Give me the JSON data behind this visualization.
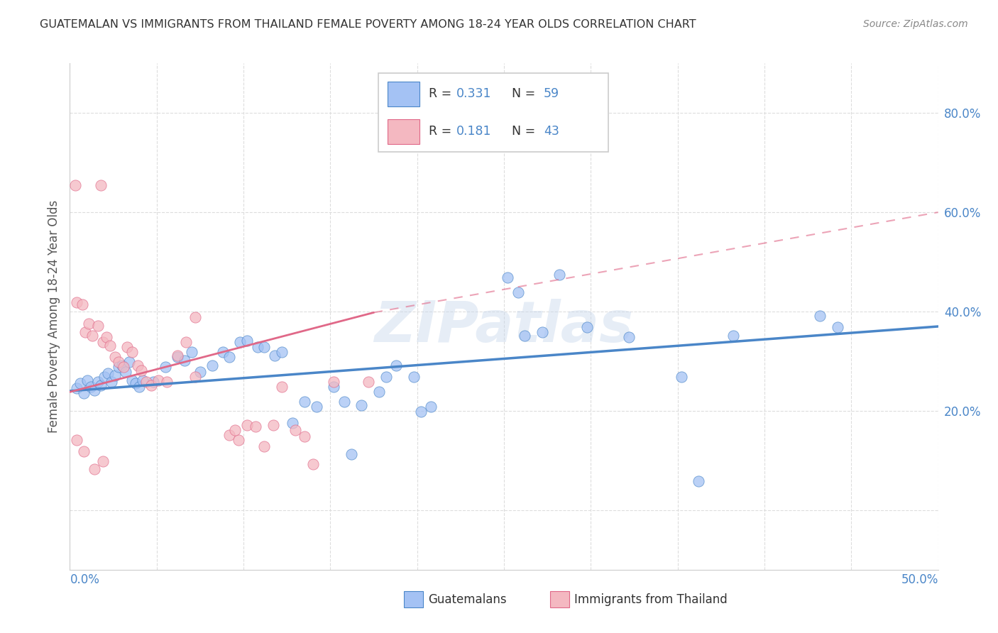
{
  "title": "GUATEMALAN VS IMMIGRANTS FROM THAILAND FEMALE POVERTY AMONG 18-24 YEAR OLDS CORRELATION CHART",
  "source": "Source: ZipAtlas.com",
  "ylabel": "Female Poverty Among 18-24 Year Olds",
  "x_range": [
    0.0,
    0.5
  ],
  "y_range": [
    -0.12,
    0.9
  ],
  "y_ticks": [
    0.0,
    0.2,
    0.4,
    0.6,
    0.8
  ],
  "y_tick_labels": [
    "",
    "20.0%",
    "40.0%",
    "60.0%",
    "80.0%"
  ],
  "color_blue": "#a4c2f4",
  "color_pink": "#f4b8c1",
  "color_blue_dark": "#4a86c8",
  "color_pink_dark": "#e06888",
  "color_blue_text": "#4a86c8",
  "watermark": "ZIPatlas",
  "blue_points": [
    [
      0.004,
      0.245
    ],
    [
      0.006,
      0.255
    ],
    [
      0.008,
      0.235
    ],
    [
      0.01,
      0.262
    ],
    [
      0.012,
      0.248
    ],
    [
      0.014,
      0.242
    ],
    [
      0.016,
      0.258
    ],
    [
      0.018,
      0.252
    ],
    [
      0.02,
      0.268
    ],
    [
      0.022,
      0.275
    ],
    [
      0.024,
      0.258
    ],
    [
      0.026,
      0.272
    ],
    [
      0.028,
      0.288
    ],
    [
      0.03,
      0.292
    ],
    [
      0.032,
      0.278
    ],
    [
      0.034,
      0.298
    ],
    [
      0.036,
      0.262
    ],
    [
      0.038,
      0.255
    ],
    [
      0.04,
      0.248
    ],
    [
      0.042,
      0.262
    ],
    [
      0.048,
      0.258
    ],
    [
      0.055,
      0.288
    ],
    [
      0.062,
      0.308
    ],
    [
      0.066,
      0.302
    ],
    [
      0.07,
      0.318
    ],
    [
      0.075,
      0.278
    ],
    [
      0.082,
      0.292
    ],
    [
      0.088,
      0.318
    ],
    [
      0.092,
      0.308
    ],
    [
      0.098,
      0.338
    ],
    [
      0.102,
      0.342
    ],
    [
      0.108,
      0.328
    ],
    [
      0.112,
      0.328
    ],
    [
      0.118,
      0.312
    ],
    [
      0.122,
      0.318
    ],
    [
      0.128,
      0.175
    ],
    [
      0.135,
      0.218
    ],
    [
      0.142,
      0.208
    ],
    [
      0.152,
      0.248
    ],
    [
      0.158,
      0.218
    ],
    [
      0.162,
      0.112
    ],
    [
      0.168,
      0.212
    ],
    [
      0.178,
      0.238
    ],
    [
      0.182,
      0.268
    ],
    [
      0.188,
      0.292
    ],
    [
      0.198,
      0.268
    ],
    [
      0.202,
      0.198
    ],
    [
      0.208,
      0.208
    ],
    [
      0.252,
      0.468
    ],
    [
      0.258,
      0.438
    ],
    [
      0.262,
      0.352
    ],
    [
      0.272,
      0.358
    ],
    [
      0.282,
      0.475
    ],
    [
      0.298,
      0.368
    ],
    [
      0.322,
      0.348
    ],
    [
      0.352,
      0.268
    ],
    [
      0.362,
      0.058
    ],
    [
      0.382,
      0.352
    ],
    [
      0.432,
      0.392
    ],
    [
      0.442,
      0.368
    ]
  ],
  "pink_points": [
    [
      0.003,
      0.655
    ],
    [
      0.018,
      0.655
    ],
    [
      0.004,
      0.418
    ],
    [
      0.007,
      0.415
    ],
    [
      0.009,
      0.358
    ],
    [
      0.011,
      0.375
    ],
    [
      0.013,
      0.352
    ],
    [
      0.016,
      0.372
    ],
    [
      0.019,
      0.338
    ],
    [
      0.021,
      0.348
    ],
    [
      0.023,
      0.332
    ],
    [
      0.026,
      0.308
    ],
    [
      0.028,
      0.298
    ],
    [
      0.031,
      0.288
    ],
    [
      0.033,
      0.328
    ],
    [
      0.036,
      0.318
    ],
    [
      0.039,
      0.292
    ],
    [
      0.041,
      0.282
    ],
    [
      0.044,
      0.258
    ],
    [
      0.047,
      0.252
    ],
    [
      0.051,
      0.262
    ],
    [
      0.056,
      0.258
    ],
    [
      0.062,
      0.312
    ],
    [
      0.067,
      0.338
    ],
    [
      0.072,
      0.268
    ],
    [
      0.004,
      0.142
    ],
    [
      0.008,
      0.118
    ],
    [
      0.014,
      0.082
    ],
    [
      0.019,
      0.098
    ],
    [
      0.092,
      0.152
    ],
    [
      0.097,
      0.142
    ],
    [
      0.102,
      0.172
    ],
    [
      0.107,
      0.168
    ],
    [
      0.112,
      0.128
    ],
    [
      0.117,
      0.172
    ],
    [
      0.072,
      0.388
    ],
    [
      0.122,
      0.248
    ],
    [
      0.152,
      0.258
    ],
    [
      0.172,
      0.258
    ],
    [
      0.095,
      0.162
    ],
    [
      0.13,
      0.162
    ],
    [
      0.135,
      0.148
    ],
    [
      0.14,
      0.092
    ]
  ],
  "blue_trend_x": [
    0.0,
    0.5
  ],
  "blue_trend_y": [
    0.24,
    0.37
  ],
  "pink_trend_x": [
    0.0,
    0.175
  ],
  "pink_trend_y": [
    0.238,
    0.398
  ]
}
